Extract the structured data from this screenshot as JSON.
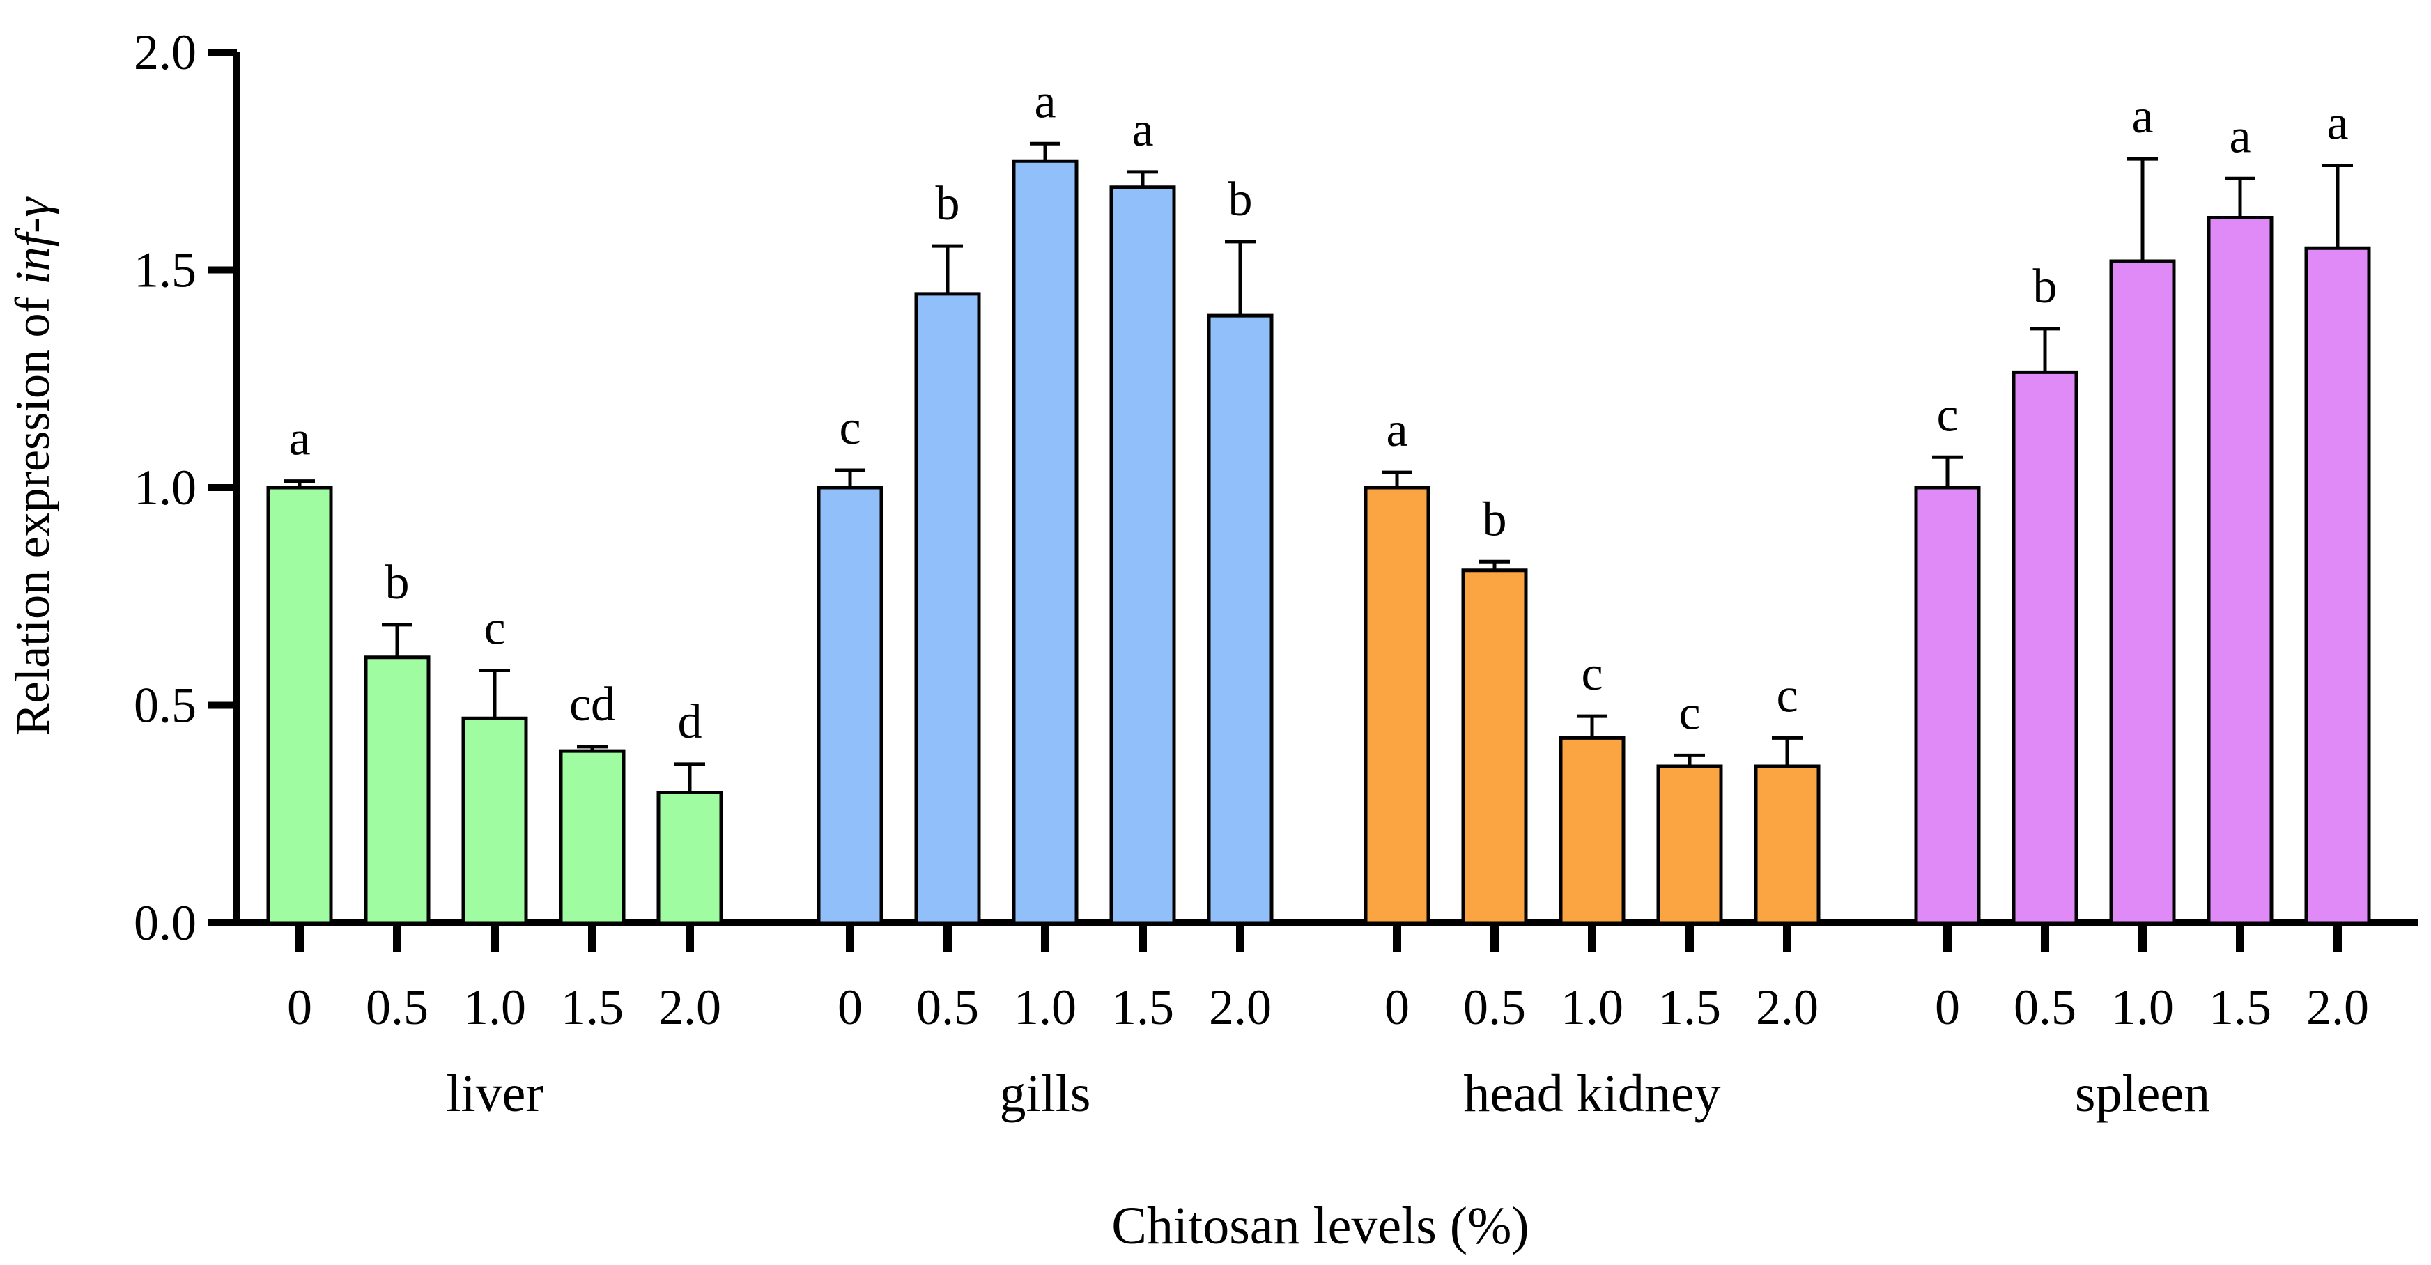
{
  "chart_data": {
    "type": "bar",
    "ylabel_prefix": "Relation expression of ",
    "ylabel_gene": "inf-γ",
    "xlabel": "Chitosan  levels  (%)",
    "ylim": [
      0,
      2.0
    ],
    "yticks": [
      "0.0",
      "0.5",
      "1.0",
      "1.5",
      "2.0"
    ],
    "groups": [
      {
        "name": "liver",
        "color": "#a0fca0",
        "categories": [
          "0",
          "0.5",
          "1.0",
          "1.5",
          "2.0"
        ],
        "values": [
          1.0,
          0.61,
          0.47,
          0.395,
          0.3
        ],
        "errors": [
          0.015,
          0.075,
          0.11,
          0.01,
          0.065
        ],
        "letters": [
          "a",
          "b",
          "c",
          "cd",
          "d"
        ]
      },
      {
        "name": "gills",
        "color": "#90bffa",
        "categories": [
          "0",
          "0.5",
          "1.0",
          "1.5",
          "2.0"
        ],
        "values": [
          1.0,
          1.445,
          1.75,
          1.69,
          1.395
        ],
        "errors": [
          0.04,
          0.11,
          0.04,
          0.035,
          0.17
        ],
        "letters": [
          "c",
          "b",
          "a",
          "a",
          "b"
        ]
      },
      {
        "name": "head kidney",
        "color": "#fba442",
        "categories": [
          "0",
          "0.5",
          "1.0",
          "1.5",
          "2.0"
        ],
        "values": [
          1.0,
          0.81,
          0.425,
          0.36,
          0.36
        ],
        "errors": [
          0.035,
          0.02,
          0.05,
          0.025,
          0.065
        ],
        "letters": [
          "a",
          "b",
          "c",
          "c",
          "c"
        ]
      },
      {
        "name": "spleen",
        "color": "#e08af7",
        "categories": [
          "0",
          "0.5",
          "1.0",
          "1.5",
          "2.0"
        ],
        "values": [
          1.0,
          1.265,
          1.52,
          1.62,
          1.55
        ],
        "errors": [
          0.07,
          0.1,
          0.235,
          0.09,
          0.19
        ],
        "letters": [
          "c",
          "b",
          "a",
          "a",
          "a"
        ]
      }
    ]
  }
}
